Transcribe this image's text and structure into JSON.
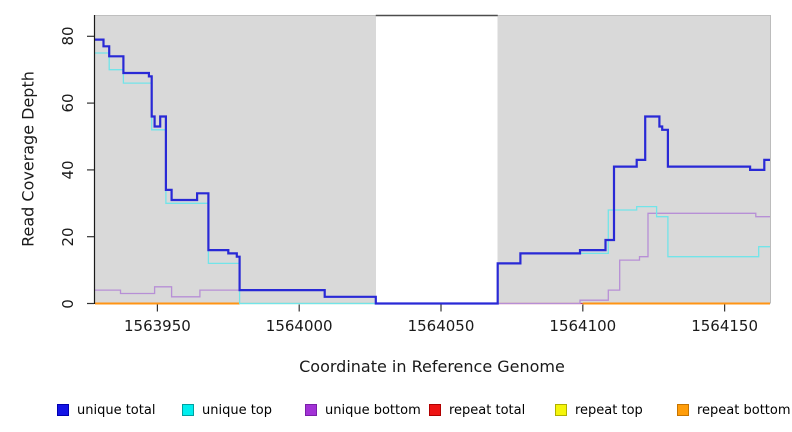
{
  "axes": {
    "y_label": "Read Coverage Depth",
    "x_label": "Coordinate in Reference Genome",
    "y_ticks": [
      0,
      20,
      40,
      60,
      80
    ],
    "x_ticks": [
      1563950,
      1564000,
      1564050,
      1564100,
      1564150
    ]
  },
  "legend": {
    "items": [
      {
        "label": "unique total",
        "fill": "#1414e6",
        "border": "#0000b0"
      },
      {
        "label": "unique top",
        "fill": "#00eeee",
        "border": "#00a0a0"
      },
      {
        "label": "unique bottom",
        "fill": "#a232d6",
        "border": "#7a1fa8"
      },
      {
        "label": "repeat total",
        "fill": "#ee1414",
        "border": "#b00000"
      },
      {
        "label": "repeat top",
        "fill": "#f5f50a",
        "border": "#b0b000"
      },
      {
        "label": "repeat bottom",
        "fill": "#ff9d0a",
        "border": "#c67400"
      }
    ]
  },
  "chart_data": {
    "type": "line",
    "step_mode": "after",
    "title": "",
    "xlabel": "Coordinate in Reference Genome",
    "ylabel": "Read Coverage Depth",
    "xlim": [
      1563928,
      1564166
    ],
    "ylim": [
      0,
      85
    ],
    "grid": false,
    "background_color": "#ffffff",
    "shaded_region_color": "#d9d9d9",
    "shaded_regions": [
      [
        1563928,
        1564027
      ],
      [
        1564070,
        1564166
      ]
    ],
    "unshaded_gap": [
      1564027,
      1564070
    ],
    "series": [
      {
        "name": "unique total",
        "color": "#2929d6",
        "width": 2.2,
        "points": [
          [
            1563928,
            79
          ],
          [
            1563931,
            77
          ],
          [
            1563933,
            74
          ],
          [
            1563938,
            69
          ],
          [
            1563947,
            68
          ],
          [
            1563948,
            56
          ],
          [
            1563949,
            53
          ],
          [
            1563951,
            56
          ],
          [
            1563953,
            34
          ],
          [
            1563955,
            31
          ],
          [
            1563964,
            33
          ],
          [
            1563968,
            16
          ],
          [
            1563975,
            15
          ],
          [
            1563978,
            14
          ],
          [
            1563979,
            4
          ],
          [
            1564009,
            2
          ],
          [
            1564027,
            0
          ],
          [
            1564070,
            12
          ],
          [
            1564078,
            15
          ],
          [
            1564099,
            16
          ],
          [
            1564108,
            19
          ],
          [
            1564111,
            41
          ],
          [
            1564119,
            43
          ],
          [
            1564122,
            56
          ],
          [
            1564127,
            53
          ],
          [
            1564128,
            52
          ],
          [
            1564130,
            41
          ],
          [
            1564159,
            40
          ],
          [
            1564164,
            43
          ],
          [
            1564166,
            43
          ]
        ]
      },
      {
        "name": "unique top",
        "color": "#72e4e9",
        "width": 1.3,
        "points": [
          [
            1563928,
            75
          ],
          [
            1563933,
            70
          ],
          [
            1563938,
            66
          ],
          [
            1563948,
            52
          ],
          [
            1563953,
            30
          ],
          [
            1563968,
            12
          ],
          [
            1563979,
            0
          ],
          [
            1564070,
            12
          ],
          [
            1564078,
            15
          ],
          [
            1564109,
            28
          ],
          [
            1564119,
            29
          ],
          [
            1564126,
            26
          ],
          [
            1564130,
            14
          ],
          [
            1564162,
            17
          ],
          [
            1564166,
            17
          ]
        ]
      },
      {
        "name": "unique bottom",
        "color": "#b78fd6",
        "width": 1.3,
        "points": [
          [
            1563928,
            4
          ],
          [
            1563937,
            3
          ],
          [
            1563949,
            5
          ],
          [
            1563955,
            2
          ],
          [
            1563965,
            4
          ],
          [
            1564009,
            2
          ],
          [
            1564027,
            0
          ],
          [
            1564099,
            1
          ],
          [
            1564109,
            4
          ],
          [
            1564113,
            13
          ],
          [
            1564120,
            14
          ],
          [
            1564123,
            27
          ],
          [
            1564161,
            26
          ],
          [
            1564166,
            26
          ]
        ]
      },
      {
        "name": "repeat total",
        "color": "#cc4257",
        "width": 1.3,
        "points": [
          [
            1563928,
            0
          ],
          [
            1564166,
            0
          ]
        ]
      },
      {
        "name": "repeat top",
        "color": "#f5f50a",
        "width": 1.0,
        "points": [
          [
            1563928,
            0
          ],
          [
            1564166,
            0
          ]
        ]
      },
      {
        "name": "repeat bottom",
        "color": "#ff9414",
        "width": 2.0,
        "points": [
          [
            1563928,
            0
          ],
          [
            1564166,
            0
          ]
        ]
      }
    ],
    "baseline_visible_segments": [
      {
        "color": "#ff9414",
        "width": 2.0,
        "range": [
          1563928,
          1563979
        ]
      },
      {
        "color": "#8fcf94",
        "width": 1.3,
        "range": [
          1563979,
          1564027
        ]
      },
      {
        "color": "#cc4257",
        "width": 1.3,
        "range": [
          1564070,
          1564100
        ]
      },
      {
        "color": "#ff9414",
        "width": 2.0,
        "range": [
          1564100,
          1564166
        ]
      }
    ]
  }
}
